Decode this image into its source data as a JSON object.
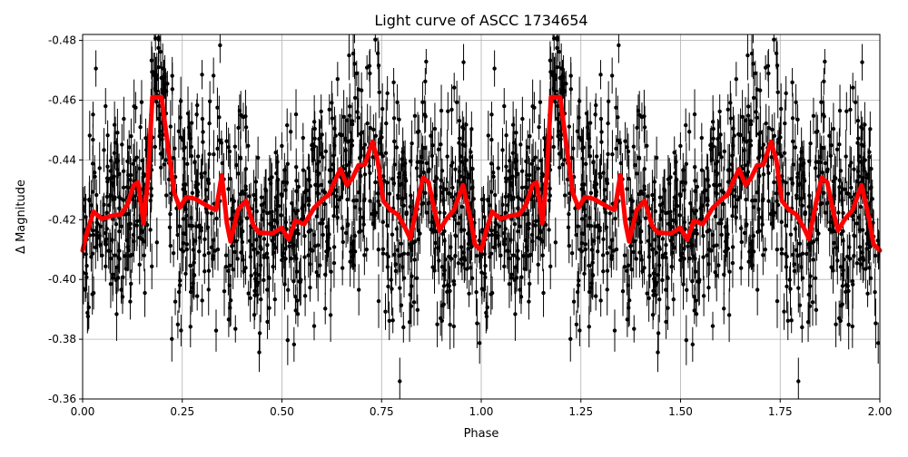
{
  "chart_data": {
    "type": "line",
    "title": "Light curve of ASCC 1734654",
    "xlabel": "Phase",
    "ylabel": "Δ Magnitude",
    "xlim": [
      0,
      2.0
    ],
    "ylim": [
      -0.36,
      -0.482
    ],
    "y_inverted": true,
    "grid": true,
    "x_ticks": [
      "0.00",
      "0.25",
      "0.50",
      "0.75",
      "1.00",
      "1.25",
      "1.50",
      "1.75",
      "2.00"
    ],
    "y_ticks": [
      "-0.48",
      "-0.46",
      "-0.44",
      "-0.42",
      "-0.40",
      "-0.38",
      "-0.36"
    ],
    "points_color": "#000000",
    "curve_color": "#ff0000",
    "series": [
      {
        "kind": "binned-curve",
        "period_repeat": 2,
        "x": [
          0,
          0.011,
          0.027,
          0.048,
          0.066,
          0.08,
          0.096,
          0.112,
          0.128,
          0.139,
          0.153,
          0.164,
          0.175,
          0.198,
          0.214,
          0.23,
          0.244,
          0.26,
          0.282,
          0.321,
          0.335,
          0.349,
          0.362,
          0.371,
          0.39,
          0.41,
          0.428,
          0.442,
          0.476,
          0.499,
          0.517,
          0.533,
          0.556,
          0.581,
          0.604,
          0.617,
          0.631,
          0.647,
          0.663,
          0.677,
          0.692,
          0.708,
          0.727,
          0.74,
          0.754,
          0.772,
          0.79,
          0.809,
          0.822,
          0.84,
          0.854,
          0.868,
          0.882,
          0.895,
          0.913,
          0.932,
          0.954,
          0.973,
          0.984,
          1.0
        ],
        "y": [
          -0.4097,
          -0.4157,
          -0.4227,
          -0.4203,
          -0.421,
          -0.4215,
          -0.4218,
          -0.4249,
          -0.4316,
          -0.4325,
          -0.4188,
          -0.434,
          -0.461,
          -0.461,
          -0.4446,
          -0.4288,
          -0.424,
          -0.4276,
          -0.427,
          -0.424,
          -0.4233,
          -0.4349,
          -0.4188,
          -0.4127,
          -0.4233,
          -0.4264,
          -0.4182,
          -0.4157,
          -0.4154,
          -0.4173,
          -0.4133,
          -0.4197,
          -0.4185,
          -0.424,
          -0.427,
          -0.4282,
          -0.4325,
          -0.437,
          -0.4316,
          -0.434,
          -0.4382,
          -0.4385,
          -0.4461,
          -0.44,
          -0.4264,
          -0.4233,
          -0.4218,
          -0.4173,
          -0.4136,
          -0.4258,
          -0.434,
          -0.4325,
          -0.4233,
          -0.4164,
          -0.4203,
          -0.4233,
          -0.4316,
          -0.4203,
          -0.4118,
          -0.4097
        ]
      }
    ]
  }
}
